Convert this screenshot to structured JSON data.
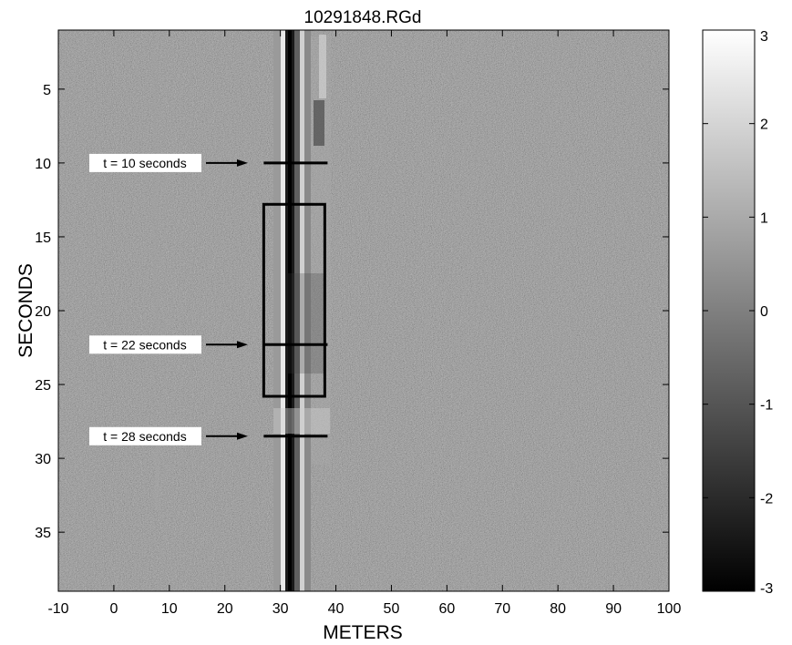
{
  "chart_data": {
    "type": "heatmap",
    "title": "10291848.RGd",
    "xlabel": "METERS",
    "ylabel": "SECONDS",
    "xlim": [
      -10,
      100
    ],
    "ylim": [
      39,
      1
    ],
    "x_ticks": [
      -10,
      0,
      10,
      20,
      30,
      40,
      50,
      60,
      70,
      80,
      90,
      100
    ],
    "y_ticks": [
      5,
      10,
      15,
      20,
      25,
      30,
      35
    ],
    "colorbar": {
      "colormap": "gray",
      "range": [
        -3,
        3
      ],
      "ticks": [
        3,
        2,
        1,
        0,
        -1,
        -2,
        -3
      ]
    },
    "annotations": [
      {
        "label": "t = 10 seconds",
        "time": 10,
        "line_x": [
          27,
          38.5
        ]
      },
      {
        "label": "t = 22 seconds",
        "time": 22.3,
        "line_x": [
          27,
          38.5
        ]
      },
      {
        "label": "t = 28 seconds",
        "time": 28.5,
        "line_x": [
          27,
          38.5
        ]
      }
    ],
    "box": {
      "x": [
        27,
        38
      ],
      "y": [
        12.8,
        25.8
      ]
    }
  }
}
